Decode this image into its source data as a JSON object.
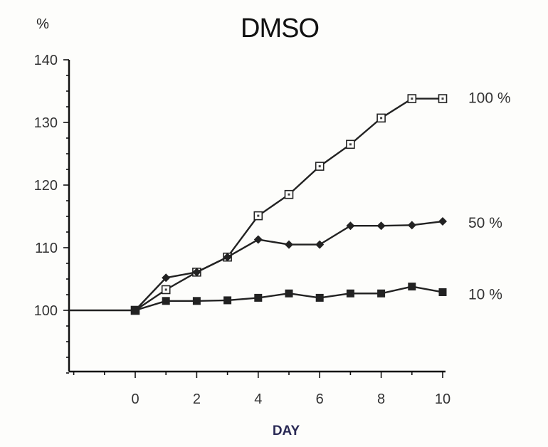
{
  "chart_data": {
    "type": "line",
    "title": "DMSO",
    "ylabel": "%",
    "xlabel": "DAY",
    "xlim": [
      -2,
      10
    ],
    "ylim": [
      90,
      140
    ],
    "xticks": [
      0,
      2,
      4,
      6,
      8,
      10
    ],
    "yticks": [
      100,
      110,
      120,
      130,
      140
    ],
    "baseline_value": 100,
    "grid": false,
    "legend": "labels at right end of each series",
    "x": [
      0,
      1,
      2,
      3,
      4,
      5,
      6,
      7,
      8,
      9,
      10
    ],
    "series": [
      {
        "name": "100 %",
        "marker": "open-square",
        "values": [
          100,
          103.3,
          106.1,
          108.5,
          115.1,
          118.5,
          123,
          126.5,
          130.7,
          133.8,
          133.8
        ]
      },
      {
        "name": "50 %",
        "marker": "diamond",
        "values": [
          100,
          105.2,
          106.1,
          108.5,
          111.3,
          110.5,
          110.5,
          113.5,
          113.5,
          113.6,
          114.2
        ]
      },
      {
        "name": "10 %",
        "marker": "filled-square",
        "values": [
          100,
          101.5,
          101.5,
          101.6,
          102,
          102.7,
          102,
          102.7,
          102.7,
          103.8,
          102.9
        ]
      }
    ]
  }
}
